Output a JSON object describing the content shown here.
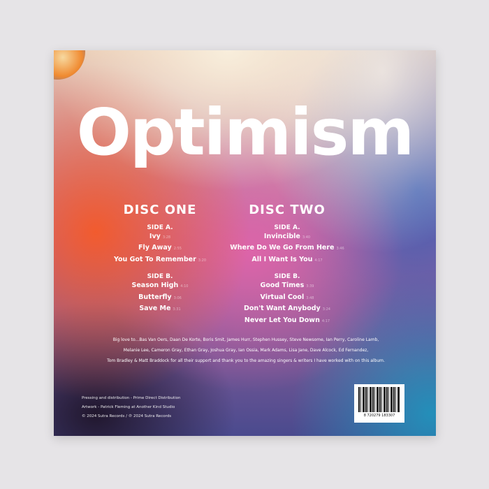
{
  "title": "Optimism",
  "discs": [
    {
      "heading": "DISC ONE",
      "sides": [
        {
          "label": "SIDE A.",
          "tracks": [
            {
              "name": "Ivy",
              "duration": "3:28"
            },
            {
              "name": "Fly Away",
              "duration": "2:55"
            },
            {
              "name": "You Got To Remember",
              "duration": "3:20"
            }
          ]
        },
        {
          "label": "SIDE B.",
          "tracks": [
            {
              "name": "Season High",
              "duration": "4:10"
            },
            {
              "name": "Butterfly",
              "duration": "3:06"
            },
            {
              "name": "Save Me",
              "duration": "3:31"
            }
          ]
        }
      ]
    },
    {
      "heading": "DISC TWO",
      "sides": [
        {
          "label": "SIDE A.",
          "tracks": [
            {
              "name": "Invincible",
              "duration": "3:40"
            },
            {
              "name": "Where Do We Go From Here",
              "duration": "3:46"
            },
            {
              "name": "All I Want Is You",
              "duration": "4:17"
            }
          ]
        },
        {
          "label": "SIDE B.",
          "tracks": [
            {
              "name": "Good Times",
              "duration": "3:39"
            },
            {
              "name": "Virtual Cool",
              "duration": "3:48"
            },
            {
              "name": "Don't Want Anybody",
              "duration": "3:24"
            },
            {
              "name": "Never Let You Down",
              "duration": "4:17"
            }
          ]
        }
      ]
    }
  ],
  "thanks": [
    "Big love to...Bas Van Oers, Daan De Korte, Boris Smit, James Hurr, Stephen Hussey, Steve Newsome, Ian Perry, Caroline Lamb,",
    "Melanie Lee, Cameron Gray, Ethan Gray, Joshua Gray, Ian Ossia, Mark Adams, Lisa Jane, Dave Alcock, Ed Fernandez,",
    "Tom Bradley & Matt Braddock for all their support and thank you to the amazing singers & writers I have worked with on this album."
  ],
  "credits": [
    "Pressing and distribution - Prime Direct Distribution",
    "Artwork - Patrick Fleming at Another Kind Studio",
    "© 2024 Sutra Records  /  ℗ 2024 Sutra Records"
  ],
  "barcode_number": "8 720279 183307"
}
